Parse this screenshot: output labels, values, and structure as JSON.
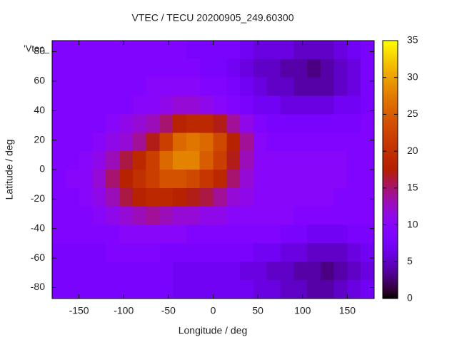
{
  "chart_data": {
    "type": "heatmap",
    "title": "VTEC / TECU 20200905_249.60300",
    "x_label": "Longitude / deg",
    "y_label": "Latitude / deg",
    "legend_label": "'Vtec_",
    "x": [
      -172.5,
      -157.5,
      -142.5,
      -127.5,
      -112.5,
      -97.5,
      -82.5,
      -67.5,
      -52.5,
      -37.5,
      -22.5,
      -7.5,
      7.5,
      22.5,
      37.5,
      52.5,
      67.5,
      82.5,
      97.5,
      112.5,
      127.5,
      142.5,
      157.5,
      172.5
    ],
    "y": [
      81.25,
      68.75,
      56.25,
      43.75,
      31.25,
      18.75,
      6.25,
      -6.25,
      -18.75,
      -31.25,
      -43.75,
      -56.25,
      -68.75,
      -81.25
    ],
    "values": [
      [
        9,
        9,
        9,
        9,
        9,
        9,
        9,
        9,
        9,
        9,
        8,
        8,
        8,
        8,
        7,
        6,
        6,
        6,
        5,
        5,
        5,
        6,
        7,
        8
      ],
      [
        9,
        9,
        9,
        9,
        9,
        9,
        9,
        9,
        9,
        9,
        9,
        8,
        8,
        7,
        6,
        5,
        5,
        4,
        4,
        3,
        4,
        5,
        6,
        8
      ],
      [
        9,
        9,
        9,
        9,
        9,
        9,
        9,
        10,
        10,
        10,
        10,
        9,
        9,
        8,
        7,
        6,
        5,
        5,
        4,
        4,
        4,
        5,
        6,
        8
      ],
      [
        9,
        9,
        9,
        9,
        9,
        9,
        10,
        10,
        11,
        12,
        12,
        11,
        10,
        9,
        8,
        7,
        7,
        6,
        6,
        6,
        6,
        7,
        7,
        8
      ],
      [
        9,
        9,
        9,
        9,
        10,
        11,
        12,
        13,
        15,
        18,
        19,
        19,
        17,
        14,
        11,
        9,
        8,
        8,
        8,
        8,
        8,
        8,
        8,
        9
      ],
      [
        9,
        9,
        9,
        10,
        11,
        12,
        14,
        17,
        22,
        26,
        27,
        26,
        23,
        18,
        14,
        10,
        9,
        9,
        9,
        9,
        9,
        9,
        9,
        9
      ],
      [
        9,
        9,
        10,
        11,
        13,
        16,
        19,
        22,
        26,
        28,
        28,
        25,
        22,
        17,
        13,
        10,
        10,
        10,
        10,
        10,
        10,
        10,
        9,
        9
      ],
      [
        9,
        10,
        10,
        12,
        15,
        18,
        20,
        22,
        24,
        24,
        23,
        21,
        19,
        15,
        12,
        10,
        10,
        10,
        10,
        10,
        10,
        10,
        9,
        9
      ],
      [
        9,
        9,
        10,
        11,
        13,
        16,
        18,
        19,
        19,
        18,
        17,
        16,
        14,
        12,
        11,
        10,
        10,
        10,
        10,
        10,
        10,
        9,
        9,
        9
      ],
      [
        9,
        9,
        9,
        10,
        11,
        12,
        13,
        14,
        13,
        12,
        12,
        11,
        11,
        10,
        10,
        10,
        10,
        10,
        9,
        9,
        9,
        9,
        9,
        9
      ],
      [
        9,
        9,
        9,
        9,
        9,
        10,
        10,
        10,
        10,
        10,
        9,
        9,
        9,
        9,
        9,
        9,
        9,
        8,
        8,
        7,
        7,
        7,
        8,
        8
      ],
      [
        8,
        8,
        8,
        8,
        9,
        9,
        9,
        9,
        8,
        8,
        8,
        8,
        8,
        8,
        8,
        7,
        7,
        6,
        6,
        5,
        5,
        5,
        6,
        7
      ],
      [
        8,
        8,
        8,
        8,
        8,
        8,
        8,
        8,
        8,
        7,
        7,
        7,
        7,
        7,
        6,
        6,
        5,
        5,
        4,
        4,
        3,
        4,
        5,
        6
      ],
      [
        8,
        8,
        8,
        8,
        8,
        8,
        8,
        8,
        8,
        7,
        7,
        7,
        7,
        7,
        7,
        6,
        6,
        5,
        5,
        4,
        4,
        5,
        6,
        7
      ]
    ],
    "xlim": [
      -180,
      180
    ],
    "ylim": [
      -87.5,
      87.5
    ],
    "xticks": [
      -150,
      -100,
      -50,
      0,
      50,
      100,
      150
    ],
    "yticks": [
      -80,
      -60,
      -40,
      -20,
      0,
      20,
      40,
      60,
      80
    ],
    "cblim": [
      0,
      35
    ],
    "cbticks": [
      0,
      5,
      10,
      15,
      20,
      25,
      30,
      35
    ]
  }
}
